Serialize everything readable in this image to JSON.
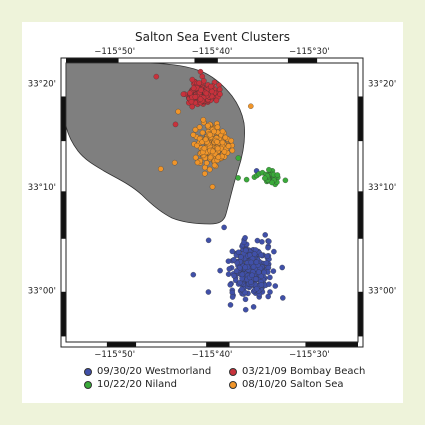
{
  "chart_data": {
    "type": "scatter",
    "title": "Salton Sea Event Clusters",
    "xlabel": "",
    "ylabel": "",
    "xlim": [
      "-115°55'",
      "-115°25'"
    ],
    "ylim": [
      "33°-05'",
      "33°22'"
    ],
    "x_ticks": [
      "-115°50'",
      "-115°40'",
      "-115°30'"
    ],
    "y_ticks": [
      "33°20'",
      "33°10'",
      "33°00'"
    ],
    "grid": false,
    "legend_position": "bottom",
    "background_shape": "Salton Sea (gray)",
    "series": [
      {
        "name": "09/30/20 Westmorland",
        "color": "#4050a8",
        "center": [
          "-115°36'",
          "33°02'"
        ],
        "approx_points": 350
      },
      {
        "name": "03/21/09 Bombay Beach",
        "color": "#c8323c",
        "center": [
          "-115°41'",
          "33°19'"
        ],
        "approx_points": 200
      },
      {
        "name": "10/22/20 Niland",
        "color": "#3aaa3a",
        "center": [
          "-115°34'",
          "33°11'"
        ],
        "approx_points": 35
      },
      {
        "name": "08/10/20 Salton Sea",
        "color": "#f0952a",
        "center": [
          "-115°40'",
          "33°14'"
        ],
        "approx_points": 180
      }
    ]
  },
  "colors": {
    "water": "#7f7f7f",
    "frame": "#222222",
    "background": "#eef3da"
  }
}
